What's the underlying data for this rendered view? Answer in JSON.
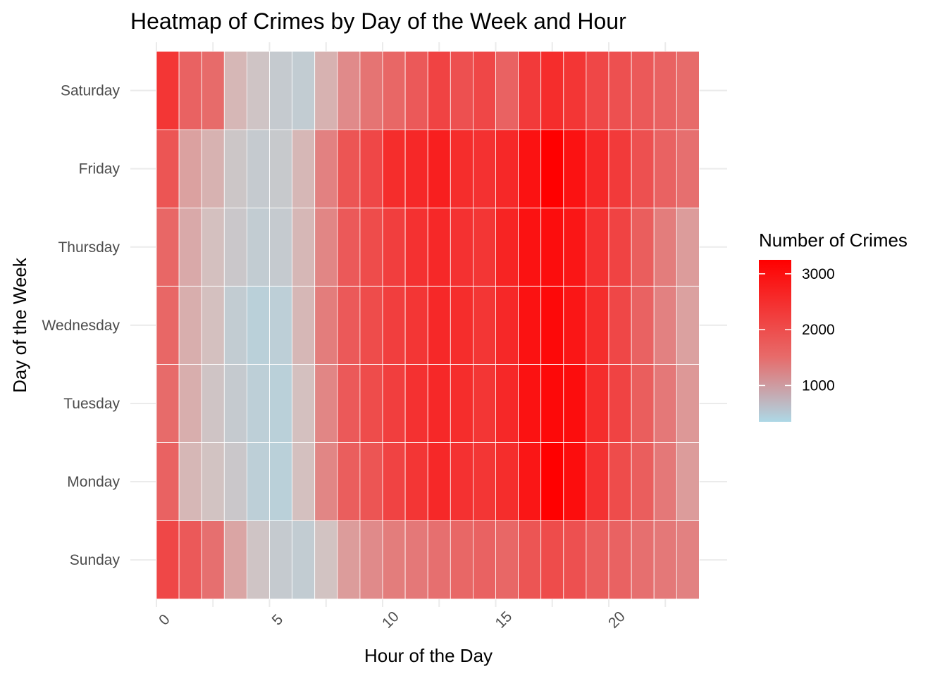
{
  "chart_data": {
    "type": "heatmap",
    "title": "Heatmap of Crimes by Day of the Week and Hour",
    "xlabel": "Hour of the Day",
    "ylabel": "Day of the Week",
    "x": [
      0,
      1,
      2,
      3,
      4,
      5,
      6,
      7,
      8,
      9,
      10,
      11,
      12,
      13,
      14,
      15,
      16,
      17,
      18,
      19,
      20,
      21,
      22,
      23
    ],
    "x_tick_labels": [
      "0",
      "5",
      "10",
      "15",
      "20"
    ],
    "x_tick_values": [
      0,
      5,
      10,
      15,
      20
    ],
    "y": [
      "Sunday",
      "Monday",
      "Tuesday",
      "Wednesday",
      "Thursday",
      "Friday",
      "Saturday"
    ],
    "values": [
      [
        2450,
        2250,
        2000,
        1400,
        1000,
        800,
        750,
        1050,
        1500,
        1700,
        1850,
        1900,
        2000,
        2100,
        2150,
        2100,
        2300,
        2400,
        2350,
        2200,
        2150,
        2000,
        1900,
        1800
      ],
      [
        2150,
        1200,
        1050,
        900,
        650,
        600,
        1100,
        1750,
        2200,
        2300,
        2500,
        2650,
        2800,
        2700,
        2650,
        2750,
        3000,
        3250,
        3100,
        2700,
        2400,
        2200,
        1900,
        1500
      ],
      [
        2050,
        1300,
        1000,
        800,
        650,
        600,
        1100,
        1750,
        2250,
        2400,
        2550,
        2700,
        2800,
        2750,
        2650,
        2800,
        3050,
        3150,
        3100,
        2750,
        2500,
        2200,
        1900,
        1550
      ],
      [
        2100,
        1300,
        1100,
        750,
        600,
        650,
        1200,
        1850,
        2250,
        2400,
        2550,
        2650,
        2800,
        2750,
        2650,
        2800,
        3050,
        3150,
        3000,
        2750,
        2450,
        2150,
        1800,
        1450
      ],
      [
        2100,
        1350,
        1100,
        900,
        750,
        800,
        1200,
        1750,
        2250,
        2400,
        2550,
        2700,
        2800,
        2700,
        2650,
        2850,
        3050,
        3100,
        3000,
        2700,
        2500,
        2200,
        1850,
        1500
      ],
      [
        2300,
        1450,
        1250,
        950,
        800,
        850,
        1200,
        1800,
        2300,
        2450,
        2750,
        2800,
        2900,
        2750,
        2700,
        2800,
        3050,
        3250,
        3050,
        2800,
        2600,
        2350,
        2150,
        2000
      ],
      [
        2650,
        2150,
        2050,
        1200,
        1000,
        800,
        750,
        1250,
        1700,
        1950,
        2100,
        2250,
        2500,
        2350,
        2450,
        2150,
        2600,
        2750,
        2650,
        2450,
        2350,
        2250,
        2150,
        2050
      ]
    ],
    "legend": {
      "title": "Number of Crimes",
      "ticks": [
        1000,
        2000,
        3000
      ],
      "tick_labels": [
        "1000",
        "2000",
        "3000"
      ],
      "range": [
        350,
        3250
      ],
      "low_color": "#add8e6",
      "high_color": "#ff0000",
      "placement": "right"
    },
    "grid": true
  }
}
